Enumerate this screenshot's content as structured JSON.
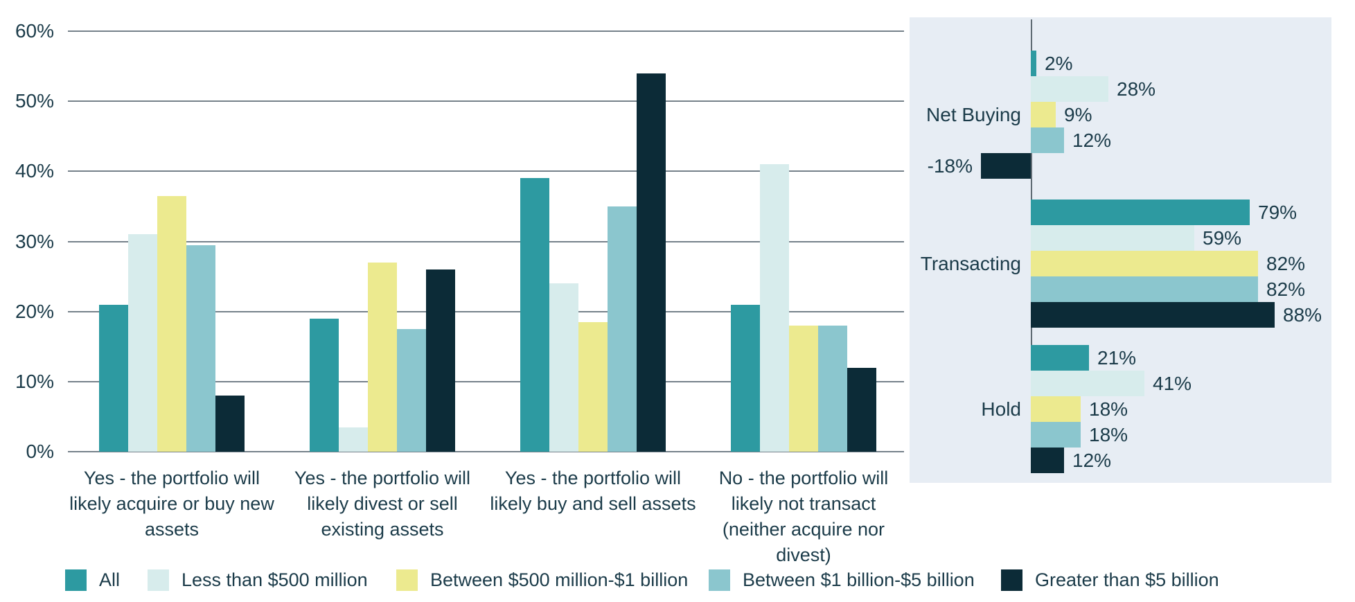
{
  "colors": {
    "text": "#1B3B49",
    "gridline": "#75818A",
    "axis_line": "#5F6B73",
    "panel_background": "#E7EDF4",
    "series": [
      "#2D9AA1",
      "#D7ECEC",
      "#ECEA8F",
      "#8BC6CE",
      "#0C2B37"
    ]
  },
  "legend": {
    "items": [
      {
        "label": "All",
        "color": "#2D9AA1"
      },
      {
        "label": "Less than $500 million",
        "color": "#D7ECEC"
      },
      {
        "label": "Between $500 million-$1 billion",
        "color": "#ECEA8F"
      },
      {
        "label": "Between $1 billion-$5 billion",
        "color": "#8BC6CE"
      },
      {
        "label": "Greater than $5 billion",
        "color": "#0C2B37"
      }
    ]
  },
  "chart_data": [
    {
      "type": "bar",
      "orientation": "vertical",
      "title": "",
      "xlabel": "",
      "ylabel": "",
      "ylim": [
        0,
        60
      ],
      "yticks": [
        "0%",
        "10%",
        "20%",
        "30%",
        "40%",
        "50%",
        "60%"
      ],
      "grid": true,
      "legend_position": "bottom",
      "categories": [
        "Yes - the portfolio will likely acquire or buy new assets",
        "Yes - the portfolio will likely divest or sell existing assets",
        "Yes - the portfolio will likely buy and sell assets",
        "No - the portfolio will likely not transact (neither acquire nor divest)"
      ],
      "series": [
        {
          "name": "All",
          "color": "#2D9AA1",
          "values": [
            21,
            19,
            39,
            21
          ]
        },
        {
          "name": "Less than $500 million",
          "color": "#D7ECEC",
          "values": [
            31,
            3.5,
            24,
            41
          ]
        },
        {
          "name": "Between $500 million-$1 billion",
          "color": "#ECEA8F",
          "values": [
            36.5,
            27,
            18.5,
            18
          ]
        },
        {
          "name": "Between $1 billion-$5 billion",
          "color": "#8BC6CE",
          "values": [
            29.5,
            17.5,
            35,
            18
          ]
        },
        {
          "name": "Greater than $5 billion",
          "color": "#0C2B37",
          "values": [
            8,
            26,
            54,
            12
          ]
        }
      ]
    },
    {
      "type": "bar",
      "orientation": "horizontal",
      "panel_background": "#E7EDF4",
      "xlim": [
        -20,
        105
      ],
      "grid": false,
      "categories": [
        "Net Buying",
        "Transacting",
        "Hold"
      ],
      "series": [
        {
          "name": "All",
          "color": "#2D9AA1",
          "values": [
            2,
            79,
            21
          ],
          "labels": [
            "2%",
            "79%",
            "21%"
          ]
        },
        {
          "name": "Less than $500 million",
          "color": "#D7ECEC",
          "values": [
            28,
            59,
            41
          ],
          "labels": [
            "28%",
            "59%",
            "41%"
          ]
        },
        {
          "name": "Between $500 million-$1 billion",
          "color": "#ECEA8F",
          "values": [
            9,
            82,
            18
          ],
          "labels": [
            "9%",
            "82%",
            "18%"
          ]
        },
        {
          "name": "Between $1 billion-$5 billion",
          "color": "#8BC6CE",
          "values": [
            12,
            82,
            18
          ],
          "labels": [
            "12%",
            "82%",
            "18%"
          ]
        },
        {
          "name": "Greater than $5 billion",
          "color": "#0C2B37",
          "values": [
            -18,
            88,
            12
          ],
          "labels": [
            "-18%",
            "88%",
            "12%"
          ]
        }
      ]
    }
  ]
}
